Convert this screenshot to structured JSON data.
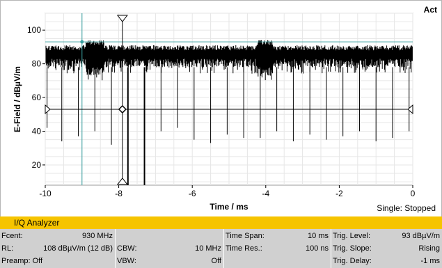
{
  "window": {
    "trace_label": "Act",
    "status": "Single: Stopped"
  },
  "analyzer": {
    "title": "I/Q Analyzer"
  },
  "chart_data": {
    "type": "line",
    "xlabel": "Time / ms",
    "ylabel": "E-Field / dBµV/m",
    "xlim": [
      -10,
      0
    ],
    "ylim": [
      8,
      110
    ],
    "x_ticks": [
      "-10",
      "-8",
      "-6",
      "-4",
      "-2",
      "0"
    ],
    "y_ticks": [
      "20",
      "40",
      "60",
      "80",
      "100"
    ],
    "grid": true,
    "trigger_level": 93,
    "display_line": 53,
    "marker_x": -9.0,
    "trigger_position_x": -7.9,
    "series": [
      {
        "envelope": {
          "base_low": 78,
          "base_high": 91,
          "burst_low": 73,
          "burst_high": 94
        },
        "bursts": [
          [
            -8.9,
            -8.4
          ],
          [
            -4.25,
            -3.8
          ]
        ],
        "spikes": [
          {
            "x": -9.95,
            "y": 42
          },
          {
            "x": -9.55,
            "y": 34
          },
          {
            "x": -9.1,
            "y": 37
          },
          {
            "x": -8.65,
            "y": 40
          },
          {
            "x": -8.2,
            "y": 32
          },
          {
            "x": -7.75,
            "y": 8
          },
          {
            "x": -7.3,
            "y": 8
          },
          {
            "x": -6.85,
            "y": 40
          },
          {
            "x": -6.4,
            "y": 42
          },
          {
            "x": -5.95,
            "y": 35
          },
          {
            "x": -5.5,
            "y": 33
          },
          {
            "x": -5.05,
            "y": 38
          },
          {
            "x": -4.6,
            "y": 36
          },
          {
            "x": -4.15,
            "y": 36
          },
          {
            "x": -3.7,
            "y": 40
          },
          {
            "x": -3.25,
            "y": 34
          },
          {
            "x": -2.8,
            "y": 38
          },
          {
            "x": -2.35,
            "y": 35
          },
          {
            "x": -1.9,
            "y": 37
          },
          {
            "x": -1.45,
            "y": 40
          },
          {
            "x": -1.0,
            "y": 34
          },
          {
            "x": -0.55,
            "y": 36
          },
          {
            "x": -0.1,
            "y": 40
          }
        ]
      }
    ]
  },
  "settings": {
    "col1": [
      {
        "label": "Fcent:",
        "value": "930 MHz"
      },
      {
        "label": "RL:",
        "value": "108 dBµV/m (12 dB)"
      },
      {
        "label": "Preamp: Off",
        "value": ""
      }
    ],
    "col2": [
      {
        "label": "",
        "value": ""
      },
      {
        "label": "CBW:",
        "value": "10 MHz"
      },
      {
        "label": "VBW:",
        "value": "Off"
      }
    ],
    "col3": [
      {
        "label": "Time Span:",
        "value": "10 ms"
      },
      {
        "label": "Time Res.:",
        "value": "100 ns"
      },
      {
        "label": "",
        "value": ""
      }
    ],
    "col4": [
      {
        "label": "Trig. Level:",
        "value": "93 dBµV/m"
      },
      {
        "label": "Trig. Slope:",
        "value": "Rising"
      },
      {
        "label": "Trig. Delay:",
        "value": "-1 ms"
      }
    ]
  },
  "colors": {
    "accent": "#f6c400",
    "marker": "#3aa0a0",
    "trace": "#000000"
  }
}
